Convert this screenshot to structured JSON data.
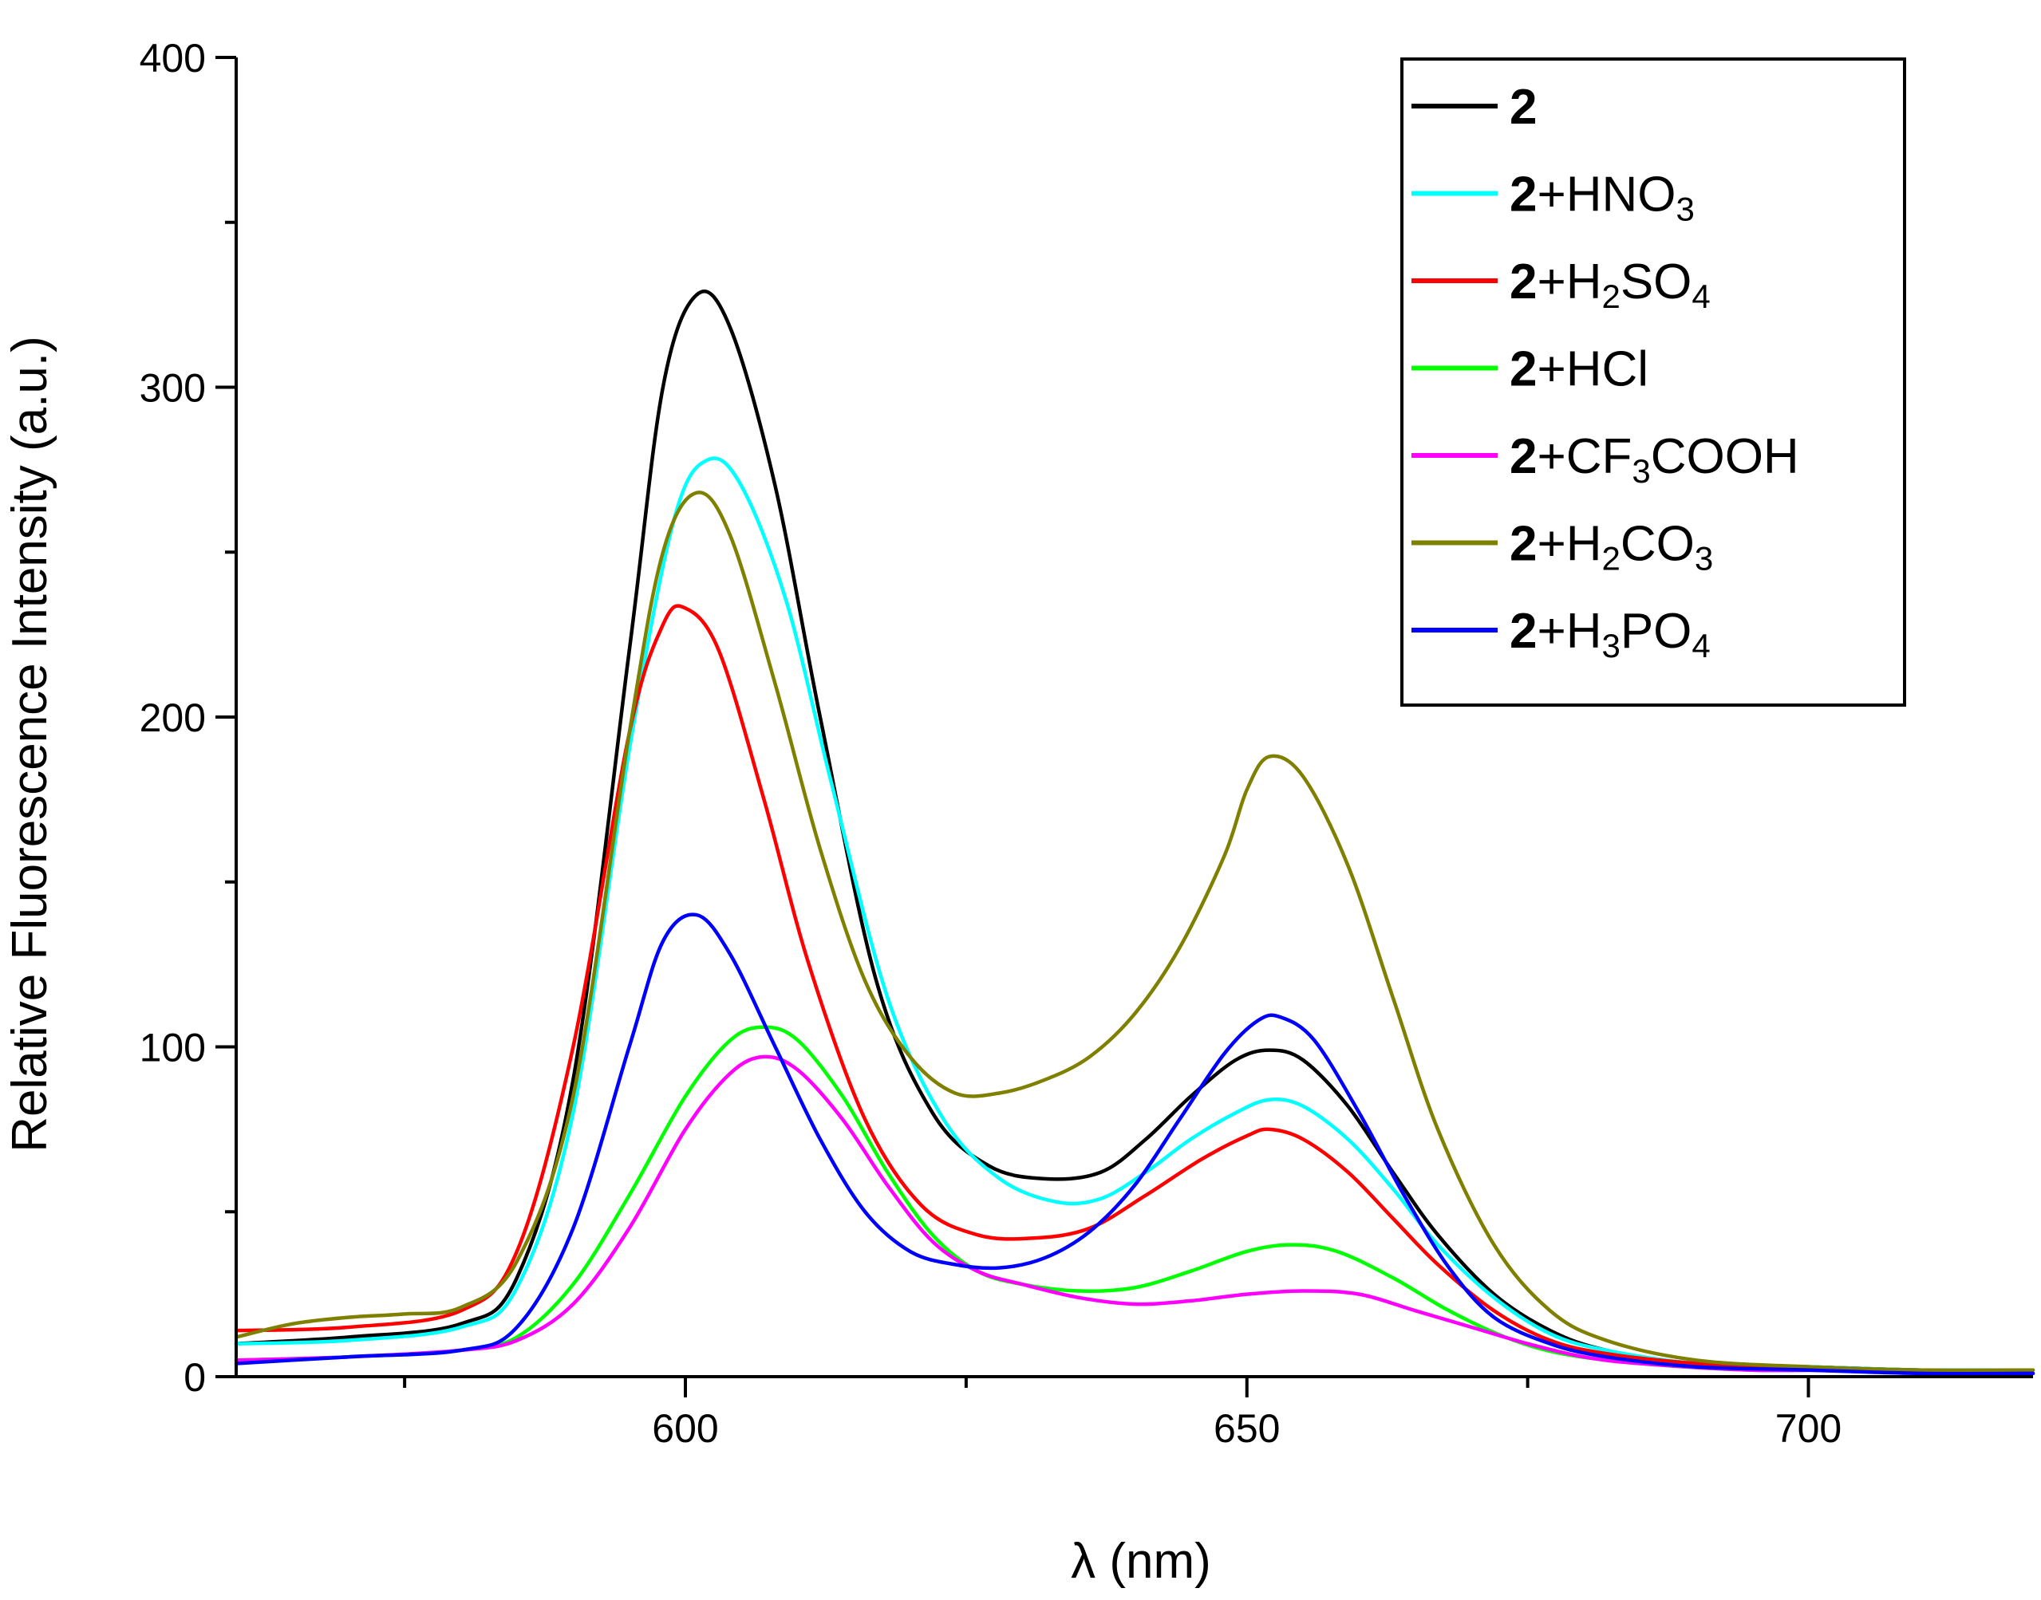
{
  "chart_data": {
    "type": "line",
    "title": "",
    "xlabel": "λ (nm)",
    "ylabel": "Relative Fluorescence Intensity (a.u.)",
    "xlim": [
      560,
      720
    ],
    "ylim": [
      0,
      400
    ],
    "x_major_ticks": [
      600,
      650,
      700
    ],
    "y_major_ticks": [
      0,
      100,
      200,
      300,
      400
    ],
    "x_tick_labels": [
      "600",
      "650",
      "700"
    ],
    "y_tick_labels": [
      "0",
      "100",
      "200",
      "300",
      "400"
    ],
    "legend_position": "top-right",
    "series": [
      {
        "name": "2",
        "label": {
          "num": "2",
          "parts": []
        },
        "color": "#000000",
        "points": [
          [
            560,
            10
          ],
          [
            570,
            12
          ],
          [
            580,
            16
          ],
          [
            585,
            30
          ],
          [
            590,
            90
          ],
          [
            595,
            220
          ],
          [
            598,
            300
          ],
          [
            601,
            328
          ],
          [
            604,
            318
          ],
          [
            608,
            270
          ],
          [
            612,
            200
          ],
          [
            617,
            120
          ],
          [
            622,
            80
          ],
          [
            627,
            64
          ],
          [
            632,
            60
          ],
          [
            637,
            62
          ],
          [
            641,
            72
          ],
          [
            645,
            85
          ],
          [
            649,
            96
          ],
          [
            652,
            99
          ],
          [
            655,
            96
          ],
          [
            659,
            82
          ],
          [
            663,
            62
          ],
          [
            667,
            43
          ],
          [
            672,
            25
          ],
          [
            677,
            14
          ],
          [
            682,
            8
          ],
          [
            690,
            4
          ],
          [
            700,
            3
          ],
          [
            710,
            2
          ],
          [
            720,
            2
          ]
        ]
      },
      {
        "name": "2+HNO3",
        "label": {
          "num": "2",
          "parts": [
            {
              "t": "+HNO",
              "s": false
            },
            {
              "t": "3",
              "s": true
            }
          ]
        },
        "color": "#00ffff",
        "points": [
          [
            560,
            10
          ],
          [
            570,
            11
          ],
          [
            580,
            15
          ],
          [
            585,
            27
          ],
          [
            590,
            80
          ],
          [
            595,
            190
          ],
          [
            599,
            260
          ],
          [
            602,
            278
          ],
          [
            605,
            270
          ],
          [
            609,
            235
          ],
          [
            613,
            180
          ],
          [
            618,
            115
          ],
          [
            623,
            78
          ],
          [
            628,
            60
          ],
          [
            633,
            53
          ],
          [
            637,
            54
          ],
          [
            641,
            62
          ],
          [
            645,
            72
          ],
          [
            649,
            80
          ],
          [
            652,
            84
          ],
          [
            655,
            82
          ],
          [
            659,
            72
          ],
          [
            663,
            57
          ],
          [
            667,
            40
          ],
          [
            672,
            24
          ],
          [
            677,
            13
          ],
          [
            682,
            8
          ],
          [
            690,
            4
          ],
          [
            700,
            3
          ],
          [
            710,
            2
          ],
          [
            720,
            2
          ]
        ]
      },
      {
        "name": "2+H2SO4",
        "label": {
          "num": "2",
          "parts": [
            {
              "t": "+H",
              "s": false
            },
            {
              "t": "2",
              "s": true
            },
            {
              "t": "SO",
              "s": false
            },
            {
              "t": "4",
              "s": true
            }
          ]
        },
        "color": "#ff0000",
        "points": [
          [
            560,
            14
          ],
          [
            570,
            15
          ],
          [
            580,
            20
          ],
          [
            585,
            38
          ],
          [
            590,
            100
          ],
          [
            595,
            195
          ],
          [
            598,
            228
          ],
          [
            600,
            233
          ],
          [
            603,
            220
          ],
          [
            607,
            175
          ],
          [
            611,
            125
          ],
          [
            616,
            78
          ],
          [
            621,
            52
          ],
          [
            626,
            43
          ],
          [
            631,
            42
          ],
          [
            636,
            45
          ],
          [
            641,
            55
          ],
          [
            646,
            66
          ],
          [
            650,
            73
          ],
          [
            652,
            75
          ],
          [
            655,
            72
          ],
          [
            659,
            62
          ],
          [
            663,
            48
          ],
          [
            667,
            34
          ],
          [
            672,
            20
          ],
          [
            677,
            11
          ],
          [
            682,
            7
          ],
          [
            690,
            4
          ],
          [
            700,
            2
          ],
          [
            710,
            2
          ],
          [
            720,
            1
          ]
        ]
      },
      {
        "name": "2+HCl",
        "label": {
          "num": "2",
          "parts": [
            {
              "t": "+HCl",
              "s": false
            }
          ]
        },
        "color": "#00ff00",
        "points": [
          [
            560,
            5
          ],
          [
            570,
            6
          ],
          [
            580,
            8
          ],
          [
            585,
            12
          ],
          [
            590,
            28
          ],
          [
            595,
            55
          ],
          [
            600,
            85
          ],
          [
            604,
            102
          ],
          [
            607,
            106
          ],
          [
            610,
            102
          ],
          [
            614,
            85
          ],
          [
            618,
            62
          ],
          [
            622,
            43
          ],
          [
            626,
            32
          ],
          [
            630,
            28
          ],
          [
            635,
            26
          ],
          [
            640,
            27
          ],
          [
            645,
            32
          ],
          [
            650,
            38
          ],
          [
            654,
            40
          ],
          [
            658,
            38
          ],
          [
            663,
            30
          ],
          [
            668,
            20
          ],
          [
            673,
            12
          ],
          [
            678,
            7
          ],
          [
            685,
            4
          ],
          [
            695,
            2
          ],
          [
            705,
            2
          ],
          [
            720,
            1
          ]
        ]
      },
      {
        "name": "2+CF3COOH",
        "label": {
          "num": "2",
          "parts": [
            {
              "t": "+CF",
              "s": false
            },
            {
              "t": "3",
              "s": true
            },
            {
              "t": "COOH",
              "s": false
            }
          ]
        },
        "color": "#ff00ff",
        "points": [
          [
            560,
            5
          ],
          [
            570,
            6
          ],
          [
            580,
            8
          ],
          [
            585,
            11
          ],
          [
            590,
            22
          ],
          [
            595,
            45
          ],
          [
            600,
            75
          ],
          [
            604,
            92
          ],
          [
            607,
            97
          ],
          [
            610,
            93
          ],
          [
            614,
            78
          ],
          [
            618,
            58
          ],
          [
            622,
            41
          ],
          [
            626,
            32
          ],
          [
            630,
            28
          ],
          [
            635,
            24
          ],
          [
            640,
            22
          ],
          [
            645,
            23
          ],
          [
            650,
            25
          ],
          [
            655,
            26
          ],
          [
            660,
            25
          ],
          [
            665,
            20
          ],
          [
            670,
            15
          ],
          [
            675,
            10
          ],
          [
            680,
            6
          ],
          [
            685,
            4
          ],
          [
            695,
            2
          ],
          [
            705,
            2
          ],
          [
            720,
            1
          ]
        ]
      },
      {
        "name": "2+H2CO3",
        "label": {
          "num": "2",
          "parts": [
            {
              "t": "+H",
              "s": false
            },
            {
              "t": "2",
              "s": true
            },
            {
              "t": "CO",
              "s": false
            },
            {
              "t": "3",
              "s": true
            }
          ]
        },
        "color": "#808000",
        "points": [
          [
            560,
            12
          ],
          [
            565,
            16
          ],
          [
            570,
            18
          ],
          [
            575,
            19
          ],
          [
            580,
            21
          ],
          [
            585,
            35
          ],
          [
            590,
            85
          ],
          [
            595,
            195
          ],
          [
            598,
            250
          ],
          [
            601,
            268
          ],
          [
            604,
            255
          ],
          [
            608,
            210
          ],
          [
            612,
            160
          ],
          [
            616,
            120
          ],
          [
            620,
            97
          ],
          [
            624,
            86
          ],
          [
            628,
            86
          ],
          [
            632,
            90
          ],
          [
            636,
            97
          ],
          [
            640,
            110
          ],
          [
            644,
            130
          ],
          [
            648,
            158
          ],
          [
            650,
            178
          ],
          [
            652,
            188
          ],
          [
            655,
            182
          ],
          [
            659,
            155
          ],
          [
            663,
            115
          ],
          [
            667,
            75
          ],
          [
            672,
            40
          ],
          [
            677,
            20
          ],
          [
            682,
            11
          ],
          [
            690,
            5
          ],
          [
            700,
            3
          ],
          [
            710,
            2
          ],
          [
            720,
            2
          ]
        ]
      },
      {
        "name": "2+H3PO4",
        "label": {
          "num": "2",
          "parts": [
            {
              "t": "+H",
              "s": false
            },
            {
              "t": "3",
              "s": true
            },
            {
              "t": "PO",
              "s": false
            },
            {
              "t": "4",
              "s": true
            }
          ]
        },
        "color": "#0000ff",
        "points": [
          [
            560,
            4
          ],
          [
            570,
            6
          ],
          [
            580,
            8
          ],
          [
            585,
            15
          ],
          [
            590,
            45
          ],
          [
            595,
            100
          ],
          [
            598,
            132
          ],
          [
            601,
            140
          ],
          [
            604,
            128
          ],
          [
            608,
            100
          ],
          [
            612,
            72
          ],
          [
            616,
            50
          ],
          [
            620,
            38
          ],
          [
            624,
            34
          ],
          [
            628,
            33
          ],
          [
            632,
            36
          ],
          [
            636,
            44
          ],
          [
            640,
            58
          ],
          [
            644,
            78
          ],
          [
            648,
            98
          ],
          [
            651,
            108
          ],
          [
            653,
            109
          ],
          [
            656,
            102
          ],
          [
            660,
            80
          ],
          [
            664,
            55
          ],
          [
            668,
            33
          ],
          [
            672,
            18
          ],
          [
            677,
            10
          ],
          [
            682,
            6
          ],
          [
            690,
            3
          ],
          [
            700,
            2
          ],
          [
            710,
            1
          ],
          [
            720,
            1
          ]
        ]
      }
    ]
  }
}
